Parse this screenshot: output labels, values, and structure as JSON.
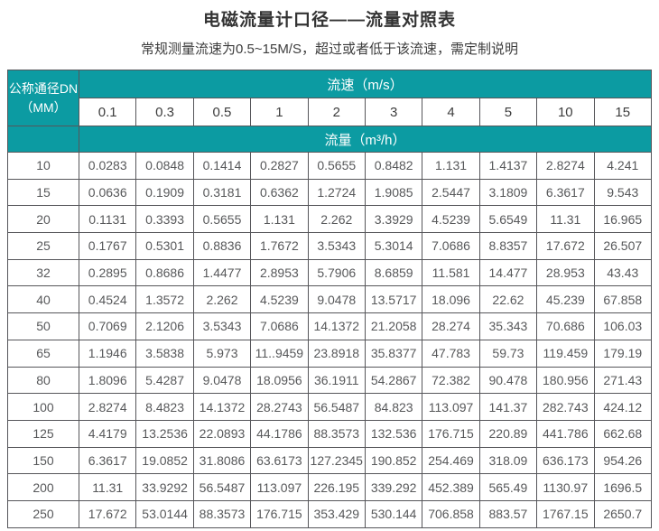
{
  "page": {
    "title": "电磁流量计口径——流量对照表",
    "subtitle": "常规测量流速为0.5~15M/S，超过或者低于该流速，需定制说明"
  },
  "colors": {
    "header_teal": "#0c9ba2",
    "table_border": "#56565a",
    "data_text": "#57585a",
    "header_text_on_teal": "#ffffff"
  },
  "chart_data": {
    "type": "table",
    "corner_header": {
      "line1": "公称通径DN",
      "line2": "（MM）"
    },
    "velocity_group_header": "流速（m/s）",
    "flow_group_header": "流量（m³/h）",
    "velocity_columns": [
      "0.1",
      "0.3",
      "0.5",
      "1",
      "2",
      "3",
      "4",
      "5",
      "10",
      "15"
    ],
    "rows": [
      {
        "dn": "10",
        "flows": [
          "0.0283",
          "0.0848",
          "0.1414",
          "0.2827",
          "0.5655",
          "0.8482",
          "1.131",
          "1.4137",
          "2.8274",
          "4.241"
        ]
      },
      {
        "dn": "15",
        "flows": [
          "0.0636",
          "0.1909",
          "0.3181",
          "0.6362",
          "1.2724",
          "1.9085",
          "2.5447",
          "3.1809",
          "6.3617",
          "9.543"
        ]
      },
      {
        "dn": "20",
        "flows": [
          "0.1131",
          "0.3393",
          "0.5655",
          "1.131",
          "2.262",
          "3.3929",
          "4.5239",
          "5.6549",
          "11.31",
          "16.965"
        ]
      },
      {
        "dn": "25",
        "flows": [
          "0.1767",
          "0.5301",
          "0.8836",
          "1.7672",
          "3.5343",
          "5.3014",
          "7.0686",
          "8.8357",
          "17.672",
          "26.507"
        ]
      },
      {
        "dn": "32",
        "flows": [
          "0.2895",
          "0.8686",
          "1.4477",
          "2.8953",
          "5.7906",
          "8.6859",
          "11.581",
          "14.477",
          "28.953",
          "43.43"
        ]
      },
      {
        "dn": "40",
        "flows": [
          "0.4524",
          "1.3572",
          "2.262",
          "4.5239",
          "9.0478",
          "13.5717",
          "18.096",
          "22.62",
          "45.239",
          "67.858"
        ]
      },
      {
        "dn": "50",
        "flows": [
          "0.7069",
          "2.1206",
          "3.5343",
          "7.0686",
          "14.1372",
          "21.2058",
          "28.274",
          "35.343",
          "70.686",
          "106.03"
        ]
      },
      {
        "dn": "65",
        "flows": [
          "1.1946",
          "3.5838",
          "5.973",
          "11..9459",
          "23.8918",
          "35.8377",
          "47.783",
          "59.73",
          "119.459",
          "179.19"
        ]
      },
      {
        "dn": "80",
        "flows": [
          "1.8096",
          "5.4287",
          "9.0478",
          "18.0956",
          "36.1911",
          "54.2867",
          "72.382",
          "90.478",
          "180.956",
          "271.43"
        ]
      },
      {
        "dn": "100",
        "flows": [
          "2.8274",
          "8.4823",
          "14.1372",
          "28.2743",
          "56.5487",
          "84.823",
          "113.097",
          "141.37",
          "282.743",
          "424.12"
        ]
      },
      {
        "dn": "125",
        "flows": [
          "4.4179",
          "13.2536",
          "22.0893",
          "44.1786",
          "88.3573",
          "132.536",
          "176.715",
          "220.89",
          "441.786",
          "662.68"
        ]
      },
      {
        "dn": "150",
        "flows": [
          "6.3617",
          "19.0852",
          "31.8086",
          "63.6173",
          "127.2345",
          "190.852",
          "254.469",
          "318.09",
          "636.173",
          "954.26"
        ]
      },
      {
        "dn": "200",
        "flows": [
          "11.31",
          "33.9292",
          "56.5487",
          "113.097",
          "226.195",
          "339.292",
          "452.389",
          "565.49",
          "1130.97",
          "1696.5"
        ]
      },
      {
        "dn": "250",
        "flows": [
          "17.672",
          "53.0144",
          "88.3573",
          "176.715",
          "353.429",
          "530.144",
          "706.858",
          "883.57",
          "1767.15",
          "2650.7"
        ]
      }
    ]
  }
}
